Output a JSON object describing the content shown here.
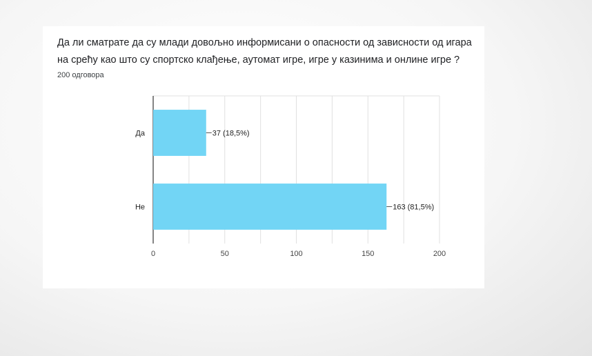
{
  "question": "Да ли сматрате да су млади довољно информисани о опасности од зависности од игара на срећу као што су спортско клађење, аутомат игре, игре у казинима и онлине игре ?",
  "response_count": "200 одговора",
  "chart_data": {
    "type": "bar",
    "orientation": "horizontal",
    "categories": [
      "Да",
      "Не"
    ],
    "values": [
      37,
      163
    ],
    "value_labels": [
      "37 (18,5%)",
      "163 (81,5%)"
    ],
    "xlim": [
      0,
      200
    ],
    "xticks": [
      0,
      50,
      100,
      150,
      200
    ],
    "grid": true,
    "bar_color": "#72d5f5",
    "grid_color": "#e0e0e0",
    "axis_color": "#333333"
  }
}
